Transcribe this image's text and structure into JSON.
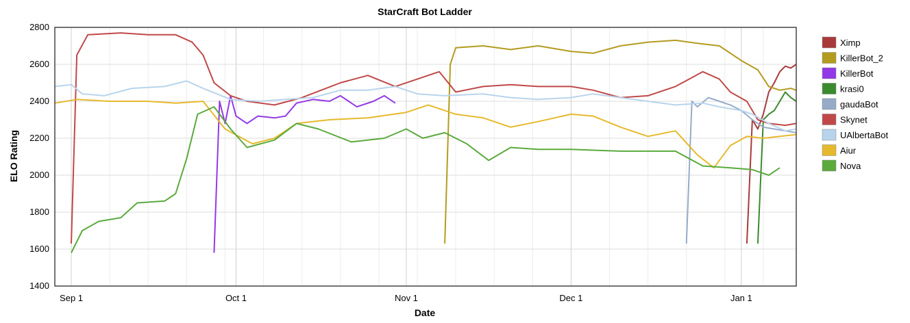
{
  "chart_data": {
    "type": "line",
    "title": "StarCraft Bot Ladder",
    "xlabel": "Date",
    "ylabel": "ELO Rating",
    "x_axis": {
      "type": "date",
      "min": "2011-08-29",
      "max": "2012-01-11",
      "ticks": [
        {
          "label": "Sep 1",
          "date": "2011-09-01"
        },
        {
          "label": "Oct 1",
          "date": "2011-10-01"
        },
        {
          "label": "Nov 1",
          "date": "2011-11-01"
        },
        {
          "label": "Dec 1",
          "date": "2011-12-01"
        },
        {
          "label": "Jan 1",
          "date": "2012-01-01"
        }
      ]
    },
    "ylim": [
      1400,
      2800
    ],
    "yticks": [
      1400,
      1600,
      1800,
      2000,
      2200,
      2400,
      2600,
      2800
    ],
    "grid": true,
    "legend_position": "right",
    "series": [
      {
        "name": "Ximp",
        "color": "#a83a3a",
        "points": [
          [
            "2012-01-02",
            1630
          ],
          [
            "2012-01-03",
            2300
          ],
          [
            "2012-01-04",
            2250
          ],
          [
            "2012-01-05",
            2330
          ],
          [
            "2012-01-06",
            2450
          ],
          [
            "2012-01-07",
            2500
          ],
          [
            "2012-01-08",
            2560
          ],
          [
            "2012-01-09",
            2590
          ],
          [
            "2012-01-10",
            2580
          ],
          [
            "2012-01-11",
            2600
          ]
        ]
      },
      {
        "name": "KillerBot_2",
        "color": "#b39b1e",
        "points": [
          [
            "2011-11-08",
            1630
          ],
          [
            "2011-11-09",
            2600
          ],
          [
            "2011-11-10",
            2690
          ],
          [
            "2011-11-15",
            2700
          ],
          [
            "2011-11-20",
            2680
          ],
          [
            "2011-11-25",
            2700
          ],
          [
            "2011-12-01",
            2670
          ],
          [
            "2011-12-05",
            2660
          ],
          [
            "2011-12-10",
            2700
          ],
          [
            "2011-12-15",
            2720
          ],
          [
            "2011-12-20",
            2730
          ],
          [
            "2011-12-25",
            2710
          ],
          [
            "2011-12-28",
            2700
          ],
          [
            "2012-01-01",
            2620
          ],
          [
            "2012-01-04",
            2570
          ],
          [
            "2012-01-06",
            2480
          ],
          [
            "2012-01-08",
            2460
          ],
          [
            "2012-01-10",
            2470
          ],
          [
            "2012-01-11",
            2460
          ]
        ]
      },
      {
        "name": "KillerBot",
        "color": "#9238e6",
        "points": [
          [
            "2011-09-27",
            1580
          ],
          [
            "2011-09-28",
            2400
          ],
          [
            "2011-09-29",
            2280
          ],
          [
            "2011-09-30",
            2430
          ],
          [
            "2011-10-01",
            2320
          ],
          [
            "2011-10-03",
            2280
          ],
          [
            "2011-10-05",
            2320
          ],
          [
            "2011-10-08",
            2310
          ],
          [
            "2011-10-10",
            2320
          ],
          [
            "2011-10-12",
            2390
          ],
          [
            "2011-10-15",
            2410
          ],
          [
            "2011-10-18",
            2400
          ],
          [
            "2011-10-20",
            2430
          ],
          [
            "2011-10-23",
            2370
          ],
          [
            "2011-10-26",
            2400
          ],
          [
            "2011-10-28",
            2430
          ],
          [
            "2011-10-30",
            2390
          ]
        ]
      },
      {
        "name": "krasi0",
        "color": "#3a8a2e",
        "points": [
          [
            "2012-01-04",
            1630
          ],
          [
            "2012-01-05",
            2300
          ],
          [
            "2012-01-06",
            2330
          ],
          [
            "2012-01-07",
            2350
          ],
          [
            "2012-01-08",
            2400
          ],
          [
            "2012-01-09",
            2450
          ],
          [
            "2012-01-10",
            2420
          ],
          [
            "2012-01-11",
            2400
          ]
        ]
      },
      {
        "name": "gaudaBot",
        "color": "#96abc8",
        "points": [
          [
            "2011-12-22",
            1630
          ],
          [
            "2011-12-23",
            2400
          ],
          [
            "2011-12-24",
            2370
          ],
          [
            "2011-12-26",
            2420
          ],
          [
            "2011-12-28",
            2400
          ],
          [
            "2011-12-30",
            2380
          ],
          [
            "2012-01-01",
            2350
          ],
          [
            "2012-01-03",
            2300
          ],
          [
            "2012-01-05",
            2260
          ],
          [
            "2012-01-07",
            2250
          ],
          [
            "2012-01-09",
            2240
          ],
          [
            "2012-01-11",
            2230
          ]
        ]
      },
      {
        "name": "Skynet",
        "color": "#c04848",
        "points": [
          [
            "2011-09-01",
            1630
          ],
          [
            "2011-09-02",
            2650
          ],
          [
            "2011-09-04",
            2760
          ],
          [
            "2011-09-10",
            2770
          ],
          [
            "2011-09-15",
            2760
          ],
          [
            "2011-09-20",
            2760
          ],
          [
            "2011-09-23",
            2720
          ],
          [
            "2011-09-25",
            2650
          ],
          [
            "2011-09-27",
            2500
          ],
          [
            "2011-09-30",
            2430
          ],
          [
            "2011-10-03",
            2400
          ],
          [
            "2011-10-08",
            2380
          ],
          [
            "2011-10-13",
            2420
          ],
          [
            "2011-10-20",
            2500
          ],
          [
            "2011-10-25",
            2540
          ],
          [
            "2011-10-30",
            2480
          ],
          [
            "2011-11-03",
            2520
          ],
          [
            "2011-11-07",
            2560
          ],
          [
            "2011-11-10",
            2450
          ],
          [
            "2011-11-15",
            2480
          ],
          [
            "2011-11-20",
            2490
          ],
          [
            "2011-11-25",
            2480
          ],
          [
            "2011-12-01",
            2480
          ],
          [
            "2011-12-05",
            2460
          ],
          [
            "2011-12-10",
            2420
          ],
          [
            "2011-12-15",
            2430
          ],
          [
            "2011-12-20",
            2480
          ],
          [
            "2011-12-25",
            2560
          ],
          [
            "2011-12-28",
            2520
          ],
          [
            "2011-12-30",
            2450
          ],
          [
            "2012-01-02",
            2400
          ],
          [
            "2012-01-04",
            2300
          ],
          [
            "2012-01-06",
            2280
          ],
          [
            "2012-01-09",
            2270
          ],
          [
            "2012-01-11",
            2280
          ]
        ]
      },
      {
        "name": "UAlbertaBot",
        "color": "#b8d4ec",
        "points": [
          [
            "2011-08-29",
            2480
          ],
          [
            "2011-09-01",
            2490
          ],
          [
            "2011-09-03",
            2440
          ],
          [
            "2011-09-07",
            2430
          ],
          [
            "2011-09-12",
            2470
          ],
          [
            "2011-09-18",
            2480
          ],
          [
            "2011-09-22",
            2510
          ],
          [
            "2011-09-25",
            2470
          ],
          [
            "2011-09-30",
            2410
          ],
          [
            "2011-10-05",
            2400
          ],
          [
            "2011-10-10",
            2410
          ],
          [
            "2011-10-15",
            2420
          ],
          [
            "2011-10-20",
            2460
          ],
          [
            "2011-10-25",
            2460
          ],
          [
            "2011-10-30",
            2480
          ],
          [
            "2011-11-03",
            2440
          ],
          [
            "2011-11-08",
            2430
          ],
          [
            "2011-11-15",
            2440
          ],
          [
            "2011-11-20",
            2420
          ],
          [
            "2011-11-25",
            2410
          ],
          [
            "2011-12-01",
            2420
          ],
          [
            "2011-12-05",
            2440
          ],
          [
            "2011-12-10",
            2420
          ],
          [
            "2011-12-15",
            2400
          ],
          [
            "2011-12-20",
            2380
          ],
          [
            "2011-12-25",
            2390
          ],
          [
            "2011-12-28",
            2370
          ],
          [
            "2012-01-01",
            2350
          ],
          [
            "2012-01-03",
            2330
          ],
          [
            "2012-01-06",
            2280
          ],
          [
            "2012-01-09",
            2240
          ],
          [
            "2012-01-11",
            2250
          ]
        ]
      },
      {
        "name": "Aiur",
        "color": "#e6b92c",
        "points": [
          [
            "2011-08-29",
            2390
          ],
          [
            "2011-09-02",
            2410
          ],
          [
            "2011-09-08",
            2400
          ],
          [
            "2011-09-15",
            2400
          ],
          [
            "2011-09-20",
            2390
          ],
          [
            "2011-09-25",
            2400
          ],
          [
            "2011-09-29",
            2250
          ],
          [
            "2011-10-04",
            2170
          ],
          [
            "2011-10-08",
            2200
          ],
          [
            "2011-10-12",
            2280
          ],
          [
            "2011-10-18",
            2300
          ],
          [
            "2011-10-25",
            2310
          ],
          [
            "2011-11-01",
            2340
          ],
          [
            "2011-11-05",
            2380
          ],
          [
            "2011-11-10",
            2330
          ],
          [
            "2011-11-15",
            2310
          ],
          [
            "2011-11-20",
            2260
          ],
          [
            "2011-11-25",
            2290
          ],
          [
            "2011-12-01",
            2330
          ],
          [
            "2011-12-05",
            2320
          ],
          [
            "2011-12-10",
            2260
          ],
          [
            "2011-12-15",
            2210
          ],
          [
            "2011-12-20",
            2240
          ],
          [
            "2011-12-24",
            2110
          ],
          [
            "2011-12-27",
            2040
          ],
          [
            "2011-12-30",
            2160
          ],
          [
            "2012-01-02",
            2210
          ],
          [
            "2012-01-05",
            2200
          ],
          [
            "2012-01-08",
            2210
          ],
          [
            "2012-01-11",
            2220
          ]
        ]
      },
      {
        "name": "Nova",
        "color": "#5aaa3c",
        "points": [
          [
            "2011-09-01",
            1580
          ],
          [
            "2011-09-03",
            1700
          ],
          [
            "2011-09-06",
            1750
          ],
          [
            "2011-09-10",
            1770
          ],
          [
            "2011-09-13",
            1850
          ],
          [
            "2011-09-18",
            1860
          ],
          [
            "2011-09-20",
            1900
          ],
          [
            "2011-09-22",
            2090
          ],
          [
            "2011-09-24",
            2330
          ],
          [
            "2011-09-27",
            2370
          ],
          [
            "2011-09-30",
            2250
          ],
          [
            "2011-10-03",
            2150
          ],
          [
            "2011-10-08",
            2190
          ],
          [
            "2011-10-12",
            2280
          ],
          [
            "2011-10-16",
            2250
          ],
          [
            "2011-10-22",
            2180
          ],
          [
            "2011-10-28",
            2200
          ],
          [
            "2011-11-01",
            2250
          ],
          [
            "2011-11-04",
            2200
          ],
          [
            "2011-11-08",
            2230
          ],
          [
            "2011-11-12",
            2170
          ],
          [
            "2011-11-16",
            2080
          ],
          [
            "2011-11-20",
            2150
          ],
          [
            "2011-11-25",
            2140
          ],
          [
            "2011-12-01",
            2140
          ],
          [
            "2011-12-10",
            2130
          ],
          [
            "2011-12-20",
            2130
          ],
          [
            "2011-12-25",
            2050
          ],
          [
            "2011-12-30",
            2040
          ],
          [
            "2012-01-03",
            2030
          ],
          [
            "2012-01-06",
            2000
          ],
          [
            "2012-01-08",
            2040
          ]
        ]
      }
    ]
  }
}
